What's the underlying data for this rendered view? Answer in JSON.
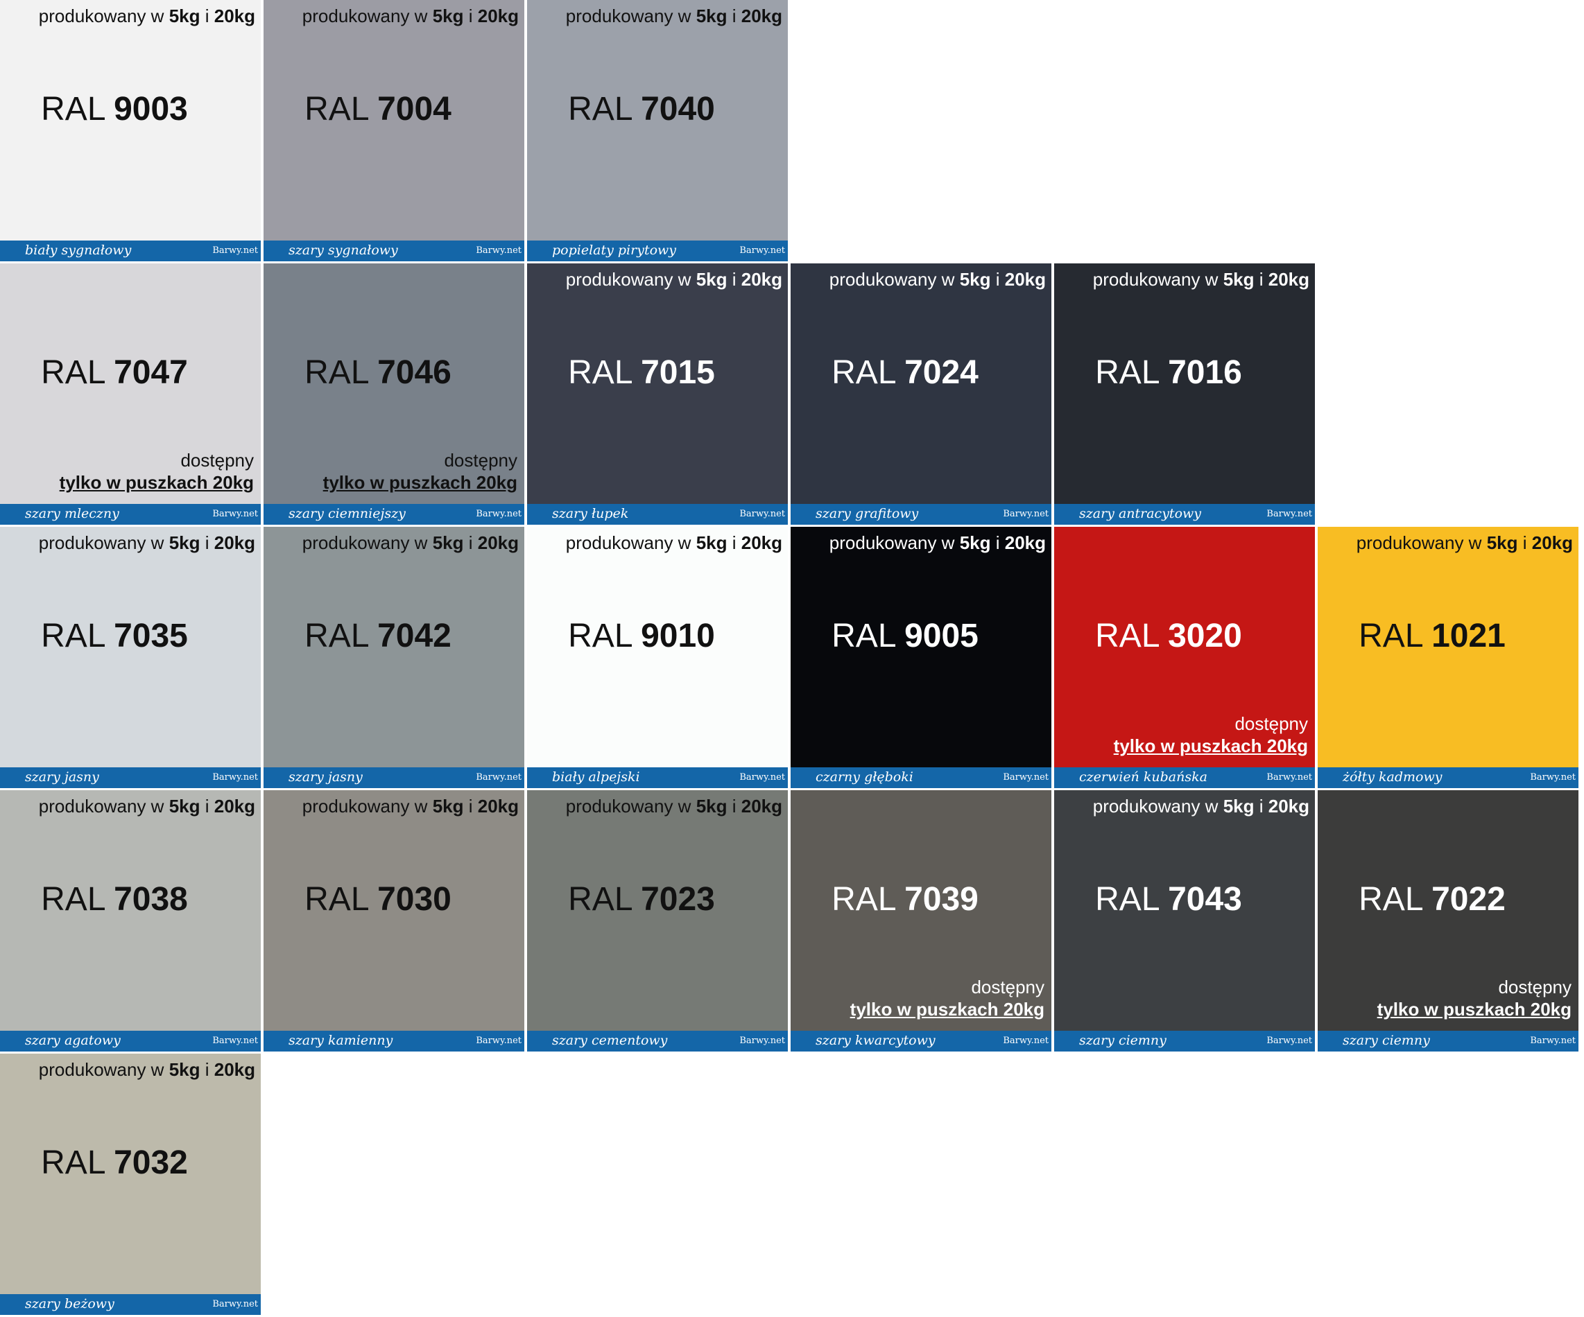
{
  "produced_text": {
    "prefix": "produkowany w ",
    "kg5": "5kg",
    "mid": " i ",
    "kg20": "20kg"
  },
  "availability_text": {
    "line1": "dostępny",
    "line2": "tylko w puszkach 20kg"
  },
  "ral_prefix": "RAL",
  "brand": "Barwy.net",
  "swatches": [
    {
      "row": 0,
      "col": 0,
      "code": "9003",
      "name": "biały sygnałowy",
      "color": "#f2f2f2",
      "text": "dark",
      "produced": true,
      "only20": false
    },
    {
      "row": 0,
      "col": 1,
      "code": "7004",
      "name": "szary sygnałowy",
      "color": "#9c9ca4",
      "text": "dark",
      "produced": true,
      "only20": false
    },
    {
      "row": 0,
      "col": 2,
      "code": "7040",
      "name": "popielaty pirytowy",
      "color": "#9ca1aa",
      "text": "dark",
      "produced": true,
      "only20": false
    },
    {
      "row": 1,
      "col": 0,
      "code": "7047",
      "name": "szary mleczny",
      "color": "#d8d7da",
      "text": "dark",
      "produced": false,
      "only20": true
    },
    {
      "row": 1,
      "col": 1,
      "code": "7046",
      "name": "szary ciemniejszy",
      "color": "#79818a",
      "text": "dark",
      "produced": false,
      "only20": true
    },
    {
      "row": 1,
      "col": 2,
      "code": "7015",
      "name": "szary łupek",
      "color": "#3a3e4b",
      "text": "light",
      "produced": true,
      "only20": false
    },
    {
      "row": 1,
      "col": 3,
      "code": "7024",
      "name": "szary grafitowy",
      "color": "#2f3542",
      "text": "light",
      "produced": true,
      "only20": false
    },
    {
      "row": 1,
      "col": 4,
      "code": "7016",
      "name": "szary antracytowy",
      "color": "#262a31",
      "text": "light",
      "produced": true,
      "only20": false
    },
    {
      "row": 2,
      "col": 0,
      "code": "7035",
      "name": "szary jasny",
      "color": "#d4d9dd",
      "text": "dark",
      "produced": true,
      "only20": false
    },
    {
      "row": 2,
      "col": 1,
      "code": "7042",
      "name": "szary jasny",
      "color": "#8d9597",
      "text": "dark",
      "produced": true,
      "only20": false
    },
    {
      "row": 2,
      "col": 2,
      "code": "9010",
      "name": "biały alpejski",
      "color": "#fbfdfc",
      "text": "dark",
      "produced": true,
      "only20": false
    },
    {
      "row": 2,
      "col": 3,
      "code": "9005",
      "name": "czarny głęboki",
      "color": "#07080c",
      "text": "light",
      "produced": true,
      "only20": false
    },
    {
      "row": 2,
      "col": 4,
      "code": "3020",
      "name": "czerwień kubańska",
      "color": "#c51715",
      "text": "light",
      "produced": false,
      "only20": true
    },
    {
      "row": 2,
      "col": 5,
      "code": "1021",
      "name": "żółty kadmowy",
      "color": "#f8bd23",
      "text": "dark",
      "produced": true,
      "only20": false
    },
    {
      "row": 3,
      "col": 0,
      "code": "7038",
      "name": "szary agatowy",
      "color": "#b6b8b4",
      "text": "dark",
      "produced": true,
      "only20": false
    },
    {
      "row": 3,
      "col": 1,
      "code": "7030",
      "name": "szary kamienny",
      "color": "#8f8c86",
      "text": "dark",
      "produced": true,
      "only20": false
    },
    {
      "row": 3,
      "col": 2,
      "code": "7023",
      "name": "szary cementowy",
      "color": "#767a75",
      "text": "dark",
      "produced": true,
      "only20": false
    },
    {
      "row": 3,
      "col": 3,
      "code": "7039",
      "name": "szary kwarcytowy",
      "color": "#5f5c57",
      "text": "light",
      "produced": false,
      "only20": true
    },
    {
      "row": 3,
      "col": 4,
      "code": "7043",
      "name": "szary ciemny",
      "color": "#3d4043",
      "text": "light",
      "produced": true,
      "only20": false
    },
    {
      "row": 3,
      "col": 5,
      "code": "7022",
      "name": "szary ciemny",
      "color": "#3c3c3b",
      "text": "light",
      "produced": false,
      "only20": true
    },
    {
      "row": 4,
      "col": 0,
      "code": "7032",
      "name": "szary beżowy",
      "color": "#bdbaab",
      "text": "dark",
      "produced": true,
      "only20": false
    }
  ]
}
